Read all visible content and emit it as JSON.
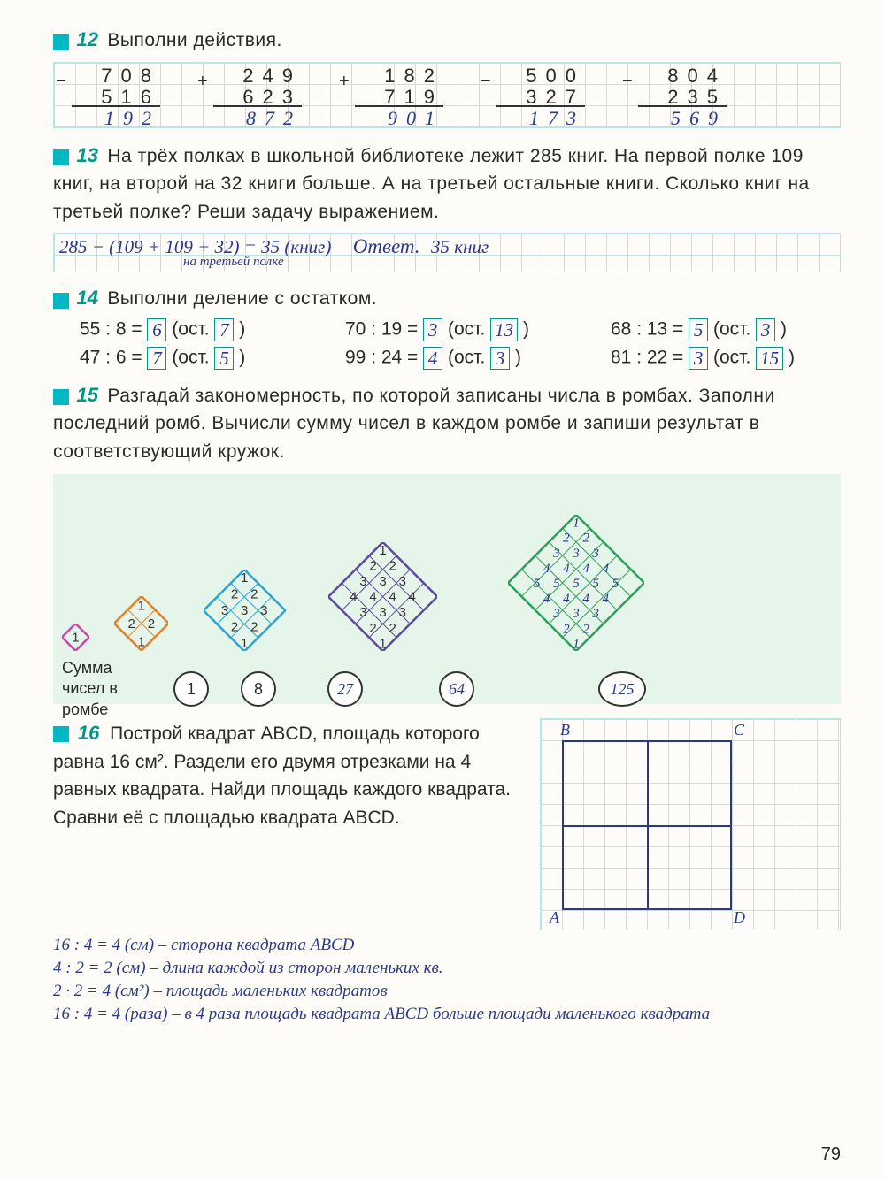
{
  "page_number": "79",
  "task12": {
    "num": "12",
    "title": "Выполни действия.",
    "columns": [
      {
        "sign": "−",
        "a": "708",
        "b": "516",
        "r": "192"
      },
      {
        "sign": "+",
        "a": "249",
        "b": "623",
        "r": "872"
      },
      {
        "sign": "+",
        "a": "182",
        "b": "719",
        "r": "901"
      },
      {
        "sign": "−",
        "a": "500",
        "b": "327",
        "r": "173"
      },
      {
        "sign": "−",
        "a": "804",
        "b": "235",
        "r": "569"
      }
    ]
  },
  "task13": {
    "num": "13",
    "text": "На трёх полках в школьной библиотеке лежит 285 книг. На первой полке 109 книг, на второй на 32 книги больше. А на третьей остальные книги. Сколько книг на третьей полке? Реши задачу выражением.",
    "answer_line": "285 − (109 + 109 + 32) = 35 (книг)",
    "answer_note": "на третьей полке",
    "answer_label": "Ответ.",
    "answer_value": "35 книг"
  },
  "task14": {
    "num": "14",
    "title": "Выполни деление с остатком.",
    "ost_label": "ост.",
    "rows": [
      [
        {
          "expr": "55 : 8 =",
          "q": "6",
          "r": "7"
        },
        {
          "expr": "70 : 19 =",
          "q": "3",
          "r": "13"
        },
        {
          "expr": "68 : 13 =",
          "q": "5",
          "r": "3"
        }
      ],
      [
        {
          "expr": "47 : 6 =",
          "q": "7",
          "r": "5"
        },
        {
          "expr": "99 : 24 =",
          "q": "4",
          "r": "3"
        },
        {
          "expr": "81 : 22 =",
          "q": "3",
          "r": "15"
        }
      ]
    ]
  },
  "task15": {
    "num": "15",
    "text": "Разгадай закономерность, по которой записаны числа в ромбах. Заполни последний ромб. Вычисли сумму чисел в каждом ромбе и запиши результат в соответствующий кружок.",
    "sum_label": "Сумма чисел в ромбе",
    "rhombi": [
      {
        "size": 1,
        "color": "#c948a8",
        "sum": "1"
      },
      {
        "size": 2,
        "color": "#e67e22",
        "sum": "8"
      },
      {
        "size": 3,
        "color": "#2aa5d6",
        "sum": "27"
      },
      {
        "size": 4,
        "color": "#5b4a9e",
        "sum": "64"
      },
      {
        "size": 5,
        "color": "#2e9e5b",
        "sum": "125",
        "handwritten": true
      }
    ]
  },
  "task16": {
    "num": "16",
    "text": "Построй квадрат ABCD, площадь которого равна 16 см². Раздели его двумя отрезками на 4 равных квадрата. Найди площадь каждого квадрата. Сравни её с площадью квадрата ABCD.",
    "vertices": {
      "A": "A",
      "B": "B",
      "C": "C",
      "D": "D"
    },
    "work": [
      "16 : 4 = 4 (см) – сторона квадрата ABCD",
      "4 : 2 = 2 (см) – длина каждой из сторон маленьких кв.",
      "2 · 2 = 4 (см²) – площадь маленьких квадратов",
      "16 : 4 = 4 (раза) – в 4 раза площадь квадрата ABCD больше площади маленького квадрата"
    ]
  }
}
